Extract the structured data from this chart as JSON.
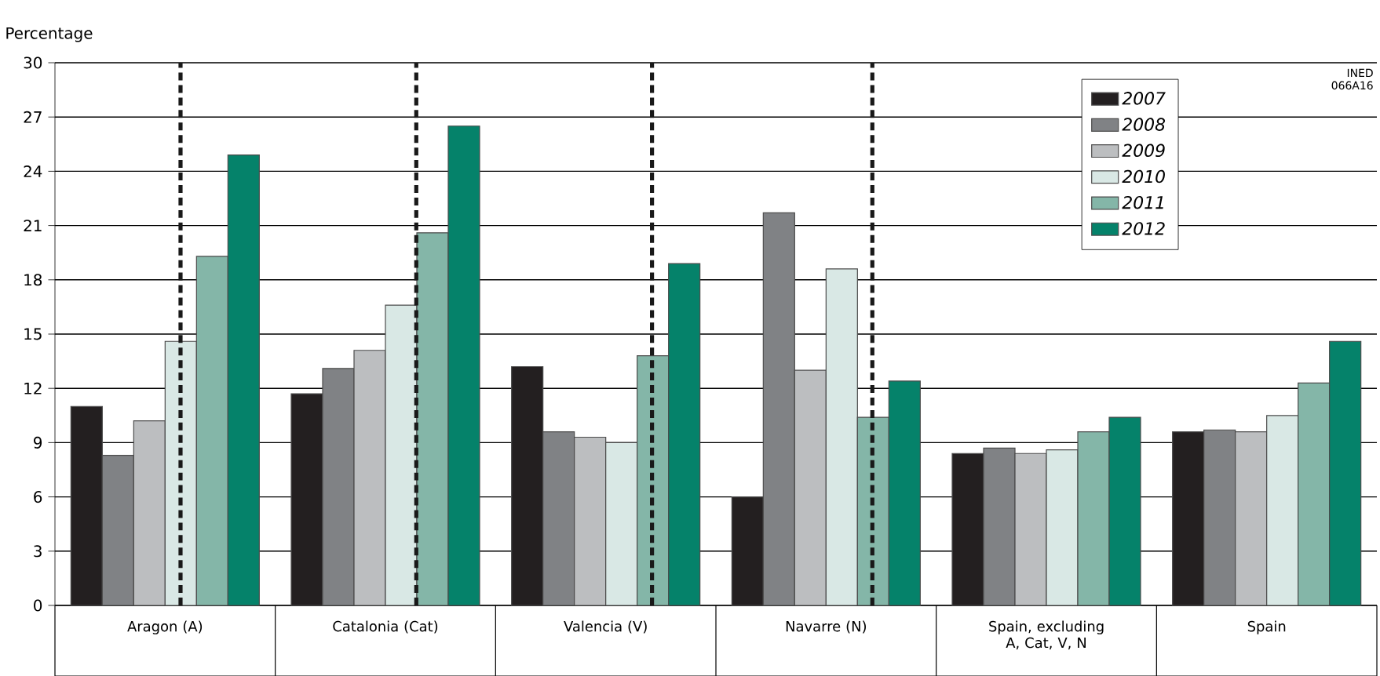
{
  "chart_data": {
    "type": "bar",
    "ylabel": "Percentage",
    "categories": [
      "Aragon (A)",
      "Catalonia (Cat)",
      "Valencia (V)",
      "Navarre (N)",
      "Spain, excluding A, Cat, V, N",
      "Spain"
    ],
    "series": [
      {
        "name": "2007",
        "color": "#231f20",
        "values": [
          11.0,
          11.7,
          13.2,
          6.0,
          8.4,
          9.6
        ]
      },
      {
        "name": "2008",
        "color": "#808285",
        "values": [
          8.3,
          13.1,
          9.6,
          21.7,
          8.7,
          9.7
        ]
      },
      {
        "name": "2009",
        "color": "#bcbec0",
        "values": [
          10.2,
          14.1,
          9.3,
          13.0,
          8.4,
          9.6
        ]
      },
      {
        "name": "2010",
        "color": "#d9e8e5",
        "values": [
          14.6,
          16.6,
          9.0,
          18.6,
          8.6,
          10.5
        ]
      },
      {
        "name": "2011",
        "color": "#84b6a8",
        "values": [
          19.3,
          20.6,
          13.8,
          10.4,
          9.6,
          12.3
        ]
      },
      {
        "name": "2012",
        "color": "#05826a",
        "values": [
          24.9,
          26.5,
          18.9,
          12.4,
          10.4,
          14.6
        ]
      }
    ],
    "ylim": [
      0,
      30
    ],
    "yticks": [
      0,
      3,
      6,
      9,
      12,
      15,
      18,
      21,
      24,
      27,
      30
    ],
    "grid": "y",
    "legend": "top right",
    "annotations": [
      "INED 066A16"
    ]
  }
}
